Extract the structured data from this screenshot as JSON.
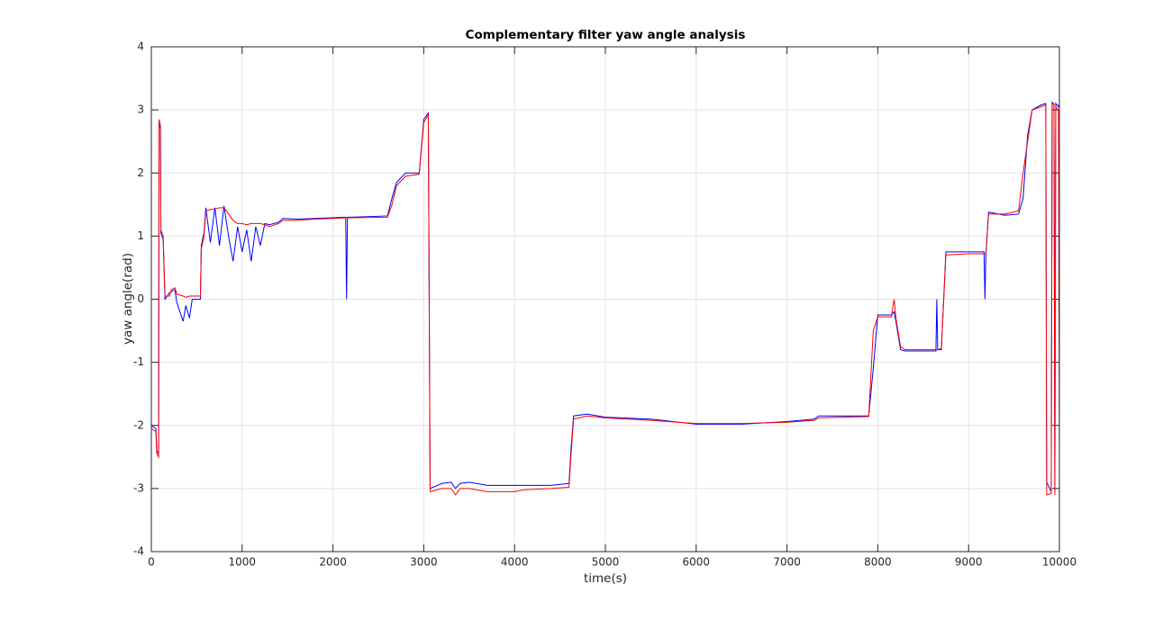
{
  "chart_data": {
    "type": "line",
    "title": "Complementary filter yaw angle analysis",
    "x_label": "time(s)",
    "y_label": "yaw angle(rad)",
    "xlim": [
      0,
      10000
    ],
    "xticks": [
      0,
      1000,
      2000,
      3000,
      4000,
      5000,
      6000,
      7000,
      8000,
      9000,
      10000
    ],
    "ylim": [
      -4,
      4
    ],
    "yticks": [
      -4,
      -3,
      -2,
      -1,
      0,
      1,
      2,
      3,
      4
    ],
    "grid": true,
    "x": [
      0,
      50,
      60,
      80,
      85,
      100,
      105,
      130,
      150,
      200,
      220,
      260,
      280,
      350,
      380,
      420,
      450,
      540,
      550,
      580,
      600,
      650,
      700,
      750,
      800,
      850,
      900,
      950,
      1000,
      1050,
      1100,
      1150,
      1200,
      1250,
      1300,
      1400,
      1450,
      1600,
      1800,
      2000,
      2140,
      2150,
      2160,
      2200,
      2600,
      2650,
      2700,
      2800,
      2950,
      3000,
      3050,
      3070,
      3200,
      3300,
      3350,
      3400,
      3500,
      3700,
      4000,
      4100,
      4400,
      4600,
      4620,
      4650,
      4800,
      5000,
      5500,
      6000,
      6500,
      7000,
      7300,
      7350,
      7900,
      7950,
      8000,
      8150,
      8180,
      8200,
      8250,
      8300,
      8640,
      8650,
      8660,
      8700,
      8750,
      9000,
      9170,
      9180,
      9190,
      9220,
      9400,
      9550,
      9600,
      9650,
      9700,
      9800,
      9850,
      9860,
      9910,
      9920,
      9940,
      9950,
      9960,
      9990,
      10000
    ],
    "series": [
      {
        "color": "#0000ff",
        "values": [
          -2.0,
          -2.05,
          -2.4,
          -2.45,
          2.8,
          2.7,
          1.05,
          0.95,
          0.0,
          0.1,
          0.12,
          0.15,
          -0.05,
          -0.35,
          -0.1,
          -0.3,
          0.0,
          0.0,
          0.85,
          1.05,
          1.45,
          0.9,
          1.45,
          0.85,
          1.48,
          1.0,
          0.6,
          1.15,
          0.75,
          1.1,
          0.6,
          1.15,
          0.85,
          1.2,
          1.18,
          1.22,
          1.28,
          1.27,
          1.28,
          1.29,
          1.3,
          0,
          1.3,
          1.3,
          1.32,
          1.6,
          1.85,
          2.0,
          2.0,
          2.85,
          2.95,
          -3.0,
          -2.92,
          -2.9,
          -3.0,
          -2.92,
          -2.9,
          -2.95,
          -2.95,
          -2.95,
          -2.95,
          -2.92,
          -2.4,
          -1.85,
          -1.82,
          -1.87,
          -1.9,
          -1.98,
          -1.98,
          -1.94,
          -1.9,
          -1.85,
          -1.85,
          -1.1,
          -0.25,
          -0.25,
          -0.2,
          -0.35,
          -0.8,
          -0.82,
          -0.82,
          0,
          -0.8,
          -0.8,
          0.75,
          0.75,
          0.75,
          0,
          0.7,
          1.38,
          1.33,
          1.35,
          1.6,
          2.6,
          3.0,
          3.08,
          3.1,
          -2.9,
          -3.05,
          3.12,
          3.08,
          -3.05,
          3.1,
          3.05,
          3.1
        ]
      },
      {
        "color": "#ff0000",
        "values": [
          -2.05,
          -2.1,
          -2.45,
          -2.5,
          2.85,
          2.75,
          1.1,
          1.0,
          0.05,
          0.05,
          0.15,
          0.18,
          0.08,
          0.05,
          0.03,
          0.05,
          0.05,
          0.05,
          0.8,
          1.0,
          1.4,
          1.42,
          1.43,
          1.45,
          1.45,
          1.35,
          1.25,
          1.2,
          1.2,
          1.18,
          1.2,
          1.2,
          1.2,
          1.18,
          1.15,
          1.2,
          1.25,
          1.25,
          1.27,
          1.28,
          1.29,
          1.29,
          1.29,
          1.29,
          1.3,
          1.5,
          1.8,
          1.95,
          1.98,
          2.8,
          2.92,
          -3.05,
          -3.0,
          -3.0,
          -3.1,
          -3.0,
          -3.0,
          -3.05,
          -3.05,
          -3.02,
          -3.0,
          -2.98,
          -2.5,
          -1.9,
          -1.85,
          -1.88,
          -1.92,
          -1.97,
          -1.97,
          -1.95,
          -1.92,
          -1.88,
          -1.86,
          -0.5,
          -0.28,
          -0.28,
          0,
          -0.3,
          -0.75,
          -0.8,
          -0.8,
          -0.8,
          -0.8,
          -0.78,
          0.7,
          0.72,
          0.72,
          0.72,
          0.72,
          1.35,
          1.35,
          1.4,
          2.0,
          2.5,
          3.0,
          3.05,
          3.08,
          -3.1,
          -3.08,
          3.1,
          3.1,
          -3.1,
          3.05,
          3.0,
          -2.5
        ]
      }
    ]
  }
}
